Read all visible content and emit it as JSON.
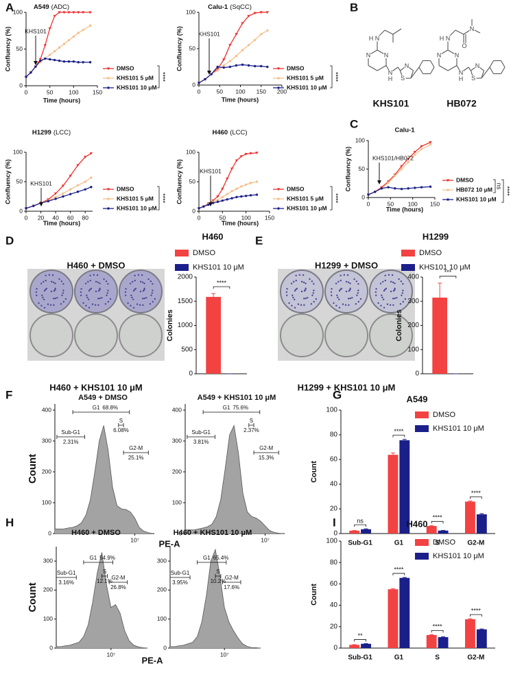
{
  "panel_labels": [
    "A",
    "B",
    "C",
    "D",
    "E",
    "F",
    "G",
    "H",
    "I"
  ],
  "structures": [
    {
      "name": "KHS101",
      "atoms": [
        "H",
        "N",
        "N",
        "N",
        "N",
        "H",
        "N",
        "S"
      ]
    },
    {
      "name": "HB072",
      "atoms": [
        "H",
        "N",
        "O",
        "N",
        "N",
        "N",
        "N",
        "H",
        "N",
        "S"
      ]
    }
  ],
  "colony_assays": [
    {
      "top_label": "H460 + DMSO",
      "bottom_label": "H460 + KHS101 10 μM"
    },
    {
      "top_label": "H1299 + DMSO",
      "bottom_label": "H1299 + KHS101 10 μM"
    }
  ],
  "chart_data": [
    {
      "type": "line",
      "title": "A549",
      "subtitle": "(ADC)",
      "xlabel": "Time (hours)",
      "ylabel": "Confluency (%)",
      "xlim": [
        0,
        150
      ],
      "xticks": [
        0,
        50,
        100,
        150
      ],
      "ylim": [
        0,
        100
      ],
      "yticks": [
        0,
        50,
        100
      ],
      "annotation": "KHS101",
      "significance": [
        "****"
      ],
      "x": [
        0,
        10,
        20,
        30,
        40,
        50,
        60,
        70,
        80,
        90,
        100,
        110,
        120,
        135
      ],
      "series": [
        {
          "name": "DMSO",
          "color": "#ee3030",
          "marker": "triangle",
          "values": [
            12,
            18,
            26,
            36,
            55,
            78,
            95,
            100,
            100,
            100,
            100,
            100,
            100,
            100
          ]
        },
        {
          "name": "KHS101 5 μM",
          "color": "#f5c08c",
          "marker": "circle",
          "values": [
            12,
            18,
            26,
            32,
            37,
            42,
            47,
            52,
            57,
            62,
            67,
            72,
            76,
            82
          ]
        },
        {
          "name": "KHS101 10 μM",
          "color": "#1a2088",
          "marker": "circle",
          "values": [
            12,
            18,
            26,
            34,
            37,
            36,
            35,
            34,
            33,
            33,
            33,
            32,
            32,
            32
          ]
        }
      ]
    },
    {
      "type": "line",
      "title": "Calu-1",
      "subtitle": "(SqCC)",
      "xlabel": "Time (hours)",
      "ylabel": "Confluency (%)",
      "xlim": [
        0,
        200
      ],
      "xticks": [
        0,
        50,
        100,
        150,
        200
      ],
      "ylim": [
        0,
        100
      ],
      "yticks": [
        0,
        50,
        100
      ],
      "annotation": "KHS101",
      "significance": [
        "****"
      ],
      "x": [
        0,
        15,
        30,
        45,
        60,
        75,
        90,
        105,
        120,
        135,
        150,
        165
      ],
      "series": [
        {
          "name": "DMSO",
          "color": "#ee3030",
          "marker": "triangle",
          "values": [
            3,
            8,
            15,
            22,
            35,
            55,
            70,
            85,
            95,
            99,
            100,
            100
          ]
        },
        {
          "name": "KHS101 5 μM",
          "color": "#f5c08c",
          "marker": "circle",
          "values": [
            3,
            8,
            15,
            20,
            27,
            33,
            40,
            48,
            55,
            62,
            70,
            75
          ]
        },
        {
          "name": "KHS101 10 μM",
          "color": "#1a2088",
          "marker": "circle",
          "values": [
            3,
            8,
            15,
            25,
            24,
            25,
            27,
            28,
            27,
            26,
            26,
            25
          ]
        }
      ]
    },
    {
      "type": "line",
      "title": "H1299",
      "subtitle": "(LCC)",
      "xlabel": "Time (hours)",
      "ylabel": "Confluency (%)",
      "xlim": [
        0,
        90
      ],
      "xticks": [
        0,
        20,
        40,
        60,
        80
      ],
      "ylim": [
        0,
        100
      ],
      "yticks": [
        0,
        50,
        100
      ],
      "annotation": "KHS101",
      "significance": [
        "****"
      ],
      "x": [
        0,
        10,
        20,
        30,
        40,
        50,
        60,
        70,
        80,
        88
      ],
      "series": [
        {
          "name": "DMSO",
          "color": "#ee3030",
          "marker": "triangle",
          "values": [
            5,
            9,
            14,
            20,
            30,
            43,
            60,
            78,
            92,
            98
          ]
        },
        {
          "name": "KHS101 5 μM",
          "color": "#f5c08c",
          "marker": "circle",
          "values": [
            5,
            9,
            14,
            18,
            24,
            30,
            37,
            44,
            50,
            57
          ]
        },
        {
          "name": "KHS101 10 μM",
          "color": "#1a2088",
          "marker": "circle",
          "values": [
            5,
            9,
            14,
            17,
            21,
            25,
            29,
            33,
            37,
            41
          ]
        }
      ]
    },
    {
      "type": "line",
      "title": "H460",
      "subtitle": "(LCC)",
      "xlabel": "Time (hours)",
      "ylabel": "Confluency (%)",
      "xlim": [
        0,
        150
      ],
      "xticks": [
        0,
        50,
        100,
        150
      ],
      "ylim": [
        0,
        100
      ],
      "yticks": [
        0,
        50,
        100
      ],
      "annotation": "KHS101",
      "significance": [
        "****"
      ],
      "x": [
        0,
        10,
        20,
        30,
        40,
        50,
        60,
        70,
        80,
        90,
        100,
        110,
        123
      ],
      "series": [
        {
          "name": "DMSO",
          "color": "#ee3030",
          "marker": "triangle",
          "values": [
            5,
            8,
            13,
            18,
            25,
            38,
            55,
            72,
            86,
            93,
            97,
            98,
            99
          ]
        },
        {
          "name": "KHS101 5 μM",
          "color": "#f5c08c",
          "marker": "circle",
          "values": [
            5,
            8,
            12,
            16,
            19,
            24,
            29,
            34,
            38,
            42,
            45,
            48,
            50
          ]
        },
        {
          "name": "KHS101 10 μM",
          "color": "#1a2088",
          "marker": "circle",
          "values": [
            5,
            8,
            11,
            14,
            16,
            18,
            20,
            22,
            24,
            25,
            26,
            27,
            28
          ]
        }
      ]
    },
    {
      "type": "line",
      "title": "Calu-1",
      "xlabel": "Time (hours)",
      "ylabel": "Confluency (%)",
      "xlim": [
        0,
        150
      ],
      "xticks": [
        0,
        50,
        100,
        150
      ],
      "ylim": [
        0,
        100
      ],
      "yticks": [
        0,
        50,
        100
      ],
      "annotation": "KHS101/HB072",
      "significance": [
        "ns",
        "****"
      ],
      "x": [
        0,
        15,
        30,
        45,
        60,
        75,
        90,
        105,
        120,
        140
      ],
      "series": [
        {
          "name": "DMSO",
          "color": "#ee3030",
          "marker": "triangle",
          "values": [
            5,
            10,
            18,
            28,
            40,
            55,
            68,
            80,
            90,
            97
          ]
        },
        {
          "name": "HB072 10 μM",
          "color": "#f5c08c",
          "marker": "circle",
          "values": [
            5,
            10,
            16,
            26,
            38,
            50,
            62,
            75,
            85,
            93
          ]
        },
        {
          "name": "KHS101 10 μM",
          "color": "#1a2088",
          "marker": "circle",
          "values": [
            5,
            10,
            16,
            18,
            16,
            15,
            16,
            17,
            18,
            19
          ]
        }
      ]
    },
    {
      "type": "bar",
      "title": "H460",
      "ylabel": "Colonies",
      "categories": [
        null
      ],
      "ylim": [
        0,
        2000
      ],
      "yticks": [
        0,
        500,
        1000,
        1500,
        2000
      ],
      "significance": [
        "****"
      ],
      "series": [
        {
          "name": "DMSO",
          "color": "#f24242",
          "values": [
            1590
          ],
          "errors": [
            70
          ]
        },
        {
          "name": "KHS101 10 μM",
          "color": "#1b1f8a",
          "values": [
            0
          ],
          "errors": [
            0
          ]
        }
      ]
    },
    {
      "type": "bar",
      "title": "H1299",
      "ylabel": "Colonies",
      "categories": [
        null
      ],
      "ylim": [
        0,
        400
      ],
      "yticks": [
        0,
        100,
        200,
        300,
        400
      ],
      "significance": [
        "***"
      ],
      "series": [
        {
          "name": "DMSO",
          "color": "#f24242",
          "values": [
            315
          ],
          "errors": [
            60
          ]
        },
        {
          "name": "KHS101 10 μM",
          "color": "#1b1f8a",
          "values": [
            0
          ],
          "errors": [
            0
          ]
        }
      ]
    },
    {
      "type": "area",
      "title": "A549 + DMSO",
      "ylabel": "Count",
      "xlabel": "PE-A",
      "color": "#a3a3a3",
      "xlim": [
        6.1,
        7.22
      ],
      "xticks": [
        {
          "value": 7,
          "label": "10⁷"
        }
      ],
      "ylim": [
        0,
        420
      ],
      "yticks": [
        0,
        100,
        200,
        300,
        400
      ],
      "x": [
        6.1,
        6.15,
        6.2,
        6.25,
        6.3,
        6.35,
        6.4,
        6.45,
        6.5,
        6.55,
        6.6,
        6.65,
        6.7,
        6.75,
        6.8,
        6.85,
        6.9,
        6.95,
        7.0,
        7.05,
        7.1,
        7.15,
        7.2
      ],
      "values": [
        15,
        15,
        15,
        18,
        20,
        25,
        35,
        60,
        110,
        200,
        300,
        350,
        270,
        150,
        90,
        80,
        78,
        70,
        50,
        20,
        8,
        3,
        0
      ],
      "gates": {
        "names": [
          "Sub-G1",
          "G1",
          "S",
          "G2-M"
        ],
        "values": [
          2.31,
          68.8,
          6.08,
          25.1
        ],
        "value_labels": [
          "2.31%",
          "68.8%",
          "6.08%",
          "25.1%"
        ]
      }
    },
    {
      "type": "area",
      "title": "A549 + KHS101 10 μM",
      "color": "#a3a3a3",
      "xlim": [
        6.1,
        7.22
      ],
      "xticks": [
        {
          "value": 7,
          "label": "10⁷"
        }
      ],
      "ylim": [
        0,
        420
      ],
      "yticks": [
        0,
        100,
        200,
        300,
        400
      ],
      "x": [
        6.1,
        6.15,
        6.2,
        6.25,
        6.3,
        6.35,
        6.4,
        6.45,
        6.5,
        6.55,
        6.6,
        6.65,
        6.7,
        6.75,
        6.8,
        6.85,
        6.9,
        6.95,
        7.0,
        7.05,
        7.1,
        7.15,
        7.2
      ],
      "values": [
        12,
        12,
        12,
        15,
        18,
        22,
        30,
        55,
        110,
        210,
        320,
        350,
        260,
        130,
        70,
        55,
        50,
        40,
        25,
        10,
        4,
        1,
        0
      ],
      "gates": {
        "names": [
          "Sub-G1",
          "G1",
          "S",
          "G2-M"
        ],
        "values": [
          3.81,
          75.6,
          2.37,
          15.3
        ],
        "value_labels": [
          "3.81%",
          "75.6%",
          "2.37%",
          "15.3%"
        ]
      }
    },
    {
      "type": "bar",
      "title": "A549",
      "ylabel": "Count",
      "categories": [
        "Sub-G1",
        "G1",
        "S",
        "G2-M"
      ],
      "ylim": [
        0,
        100
      ],
      "yticks": [
        0,
        20,
        40,
        60,
        80,
        100
      ],
      "significance": [
        "ns",
        "****",
        "****",
        "****"
      ],
      "series": [
        {
          "name": "DMSO",
          "color": "#f24242",
          "values": [
            2.3,
            63.8,
            6.1,
            25.9
          ],
          "errors": [
            0.3,
            1.5,
            0.4,
            0.5
          ]
        },
        {
          "name": "KHS101 10 μM",
          "color": "#1b1f8a",
          "values": [
            3.5,
            75.6,
            2.4,
            15.6
          ],
          "errors": [
            0.3,
            0.7,
            0.2,
            0.6
          ]
        }
      ]
    },
    {
      "type": "area",
      "title": "H460 + DMSO",
      "ylabel": "Count",
      "xlabel": "PE-A",
      "color": "#a3a3a3",
      "xlim": [
        6.4,
        7.4
      ],
      "xticks": [
        {
          "value": 7,
          "label": "10⁷"
        }
      ],
      "ylim": [
        0,
        350
      ],
      "yticks": [
        0,
        100,
        200,
        300
      ],
      "x": [
        6.4,
        6.45,
        6.5,
        6.55,
        6.6,
        6.65,
        6.7,
        6.75,
        6.8,
        6.85,
        6.9,
        6.95,
        7.0,
        7.05,
        7.1,
        7.15,
        7.2,
        7.25,
        7.3,
        7.35,
        7.4
      ],
      "values": [
        5,
        5,
        8,
        10,
        15,
        20,
        40,
        80,
        160,
        260,
        330,
        220,
        140,
        150,
        120,
        60,
        25,
        10,
        4,
        1,
        0
      ],
      "gates": {
        "names": [
          "Sub-G1",
          "G1",
          "S",
          "G2-M"
        ],
        "values": [
          3.16,
          54.9,
          12.1,
          26.8
        ],
        "value_labels": [
          "3.16%",
          "54.9%",
          "12.1%",
          "26.8%"
        ]
      }
    },
    {
      "type": "area",
      "title": "H460 + KHS101 10 μM",
      "color": "#a3a3a3",
      "xlim": [
        6.4,
        7.4
      ],
      "xticks": [
        {
          "value": 7,
          "label": "10⁷"
        }
      ],
      "ylim": [
        0,
        350
      ],
      "yticks": [
        0,
        100,
        200,
        300
      ],
      "x": [
        6.4,
        6.45,
        6.5,
        6.55,
        6.6,
        6.65,
        6.7,
        6.75,
        6.8,
        6.85,
        6.9,
        6.95,
        7.0,
        7.05,
        7.1,
        7.15,
        7.2,
        7.25,
        7.3,
        7.35,
        7.4
      ],
      "values": [
        5,
        5,
        8,
        10,
        15,
        20,
        40,
        90,
        180,
        300,
        340,
        250,
        140,
        90,
        60,
        35,
        15,
        6,
        2,
        1,
        0
      ],
      "gates": {
        "names": [
          "Sub-G1",
          "G1",
          "S",
          "G2-M"
        ],
        "values": [
          3.95,
          65.4,
          10.2,
          17.6
        ],
        "value_labels": [
          "3.95%",
          "65.4%",
          "10.2%",
          "17.6%"
        ]
      }
    },
    {
      "type": "bar",
      "title": "H460",
      "ylabel": "Count",
      "categories": [
        "Sub-G1",
        "G1",
        "S",
        "G2-M"
      ],
      "ylim": [
        0,
        100
      ],
      "yticks": [
        0,
        20,
        40,
        60,
        80,
        100
      ],
      "significance": [
        "**",
        "****",
        "****",
        "****"
      ],
      "series": [
        {
          "name": "DMSO",
          "color": "#f24242",
          "values": [
            3,
            55,
            12.2,
            27
          ],
          "errors": [
            0.3,
            0.6,
            0.4,
            0.5
          ]
        },
        {
          "name": "KHS101 10 μM",
          "color": "#1b1f8a",
          "values": [
            4,
            65.6,
            10.2,
            17.5
          ],
          "errors": [
            0.2,
            0.4,
            0.3,
            0.4
          ]
        }
      ]
    }
  ]
}
